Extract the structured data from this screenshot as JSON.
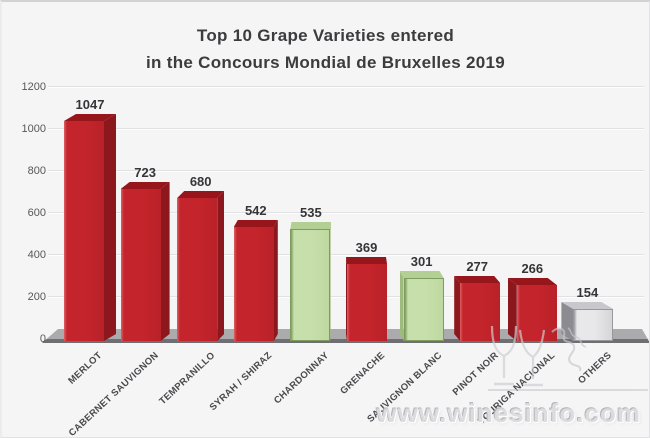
{
  "title": {
    "line1": "Top 10 Grape Varieties entered",
    "line2": "in the Concours Mondial de Bruxelles 2019"
  },
  "watermark": {
    "text": "www.winesinfo.com",
    "logo_icon": "wine-glasses-icon"
  },
  "chart_data": {
    "type": "bar",
    "style": "3d-column",
    "title": "Top 10 Grape Varieties entered in the Concours Mondial de Bruxelles 2019",
    "categories": [
      "MERLOT",
      "CABERNET SAUVIGNON",
      "TEMPRANILLO",
      "SYRAH / SHIRAZ",
      "CHARDONNAY",
      "GRENACHE",
      "SAUVIGNON BLANC",
      "PINOT NOIR",
      "TOURIGA NACIONAL",
      "OTHERS"
    ],
    "values": [
      1047,
      723,
      680,
      542,
      535,
      369,
      301,
      277,
      266,
      154
    ],
    "bar_colors": [
      "red",
      "red",
      "red",
      "red",
      "green",
      "red",
      "green",
      "red",
      "red",
      "gray"
    ],
    "xlabel": "",
    "ylabel": "",
    "ylim": [
      0,
      1200
    ],
    "yticks": [
      0,
      200,
      400,
      600,
      800,
      1000,
      1200
    ],
    "grid": true,
    "legend": false,
    "palette": {
      "red": {
        "front": "#c4242b",
        "side": "#8c181e",
        "top": "#96161b",
        "edge": "#dd6064"
      },
      "green": {
        "front": "#c7dfaa",
        "side": "#9eba7d",
        "top": "#b4cf94",
        "edge": "#7d9c5e"
      },
      "gray": {
        "front": "#e8e8eb",
        "side": "#8b8b91",
        "top": "#c8c8cc",
        "edge": "#97979d"
      }
    },
    "floor_color": "#ababae",
    "background_color": "#f5f5f6"
  }
}
